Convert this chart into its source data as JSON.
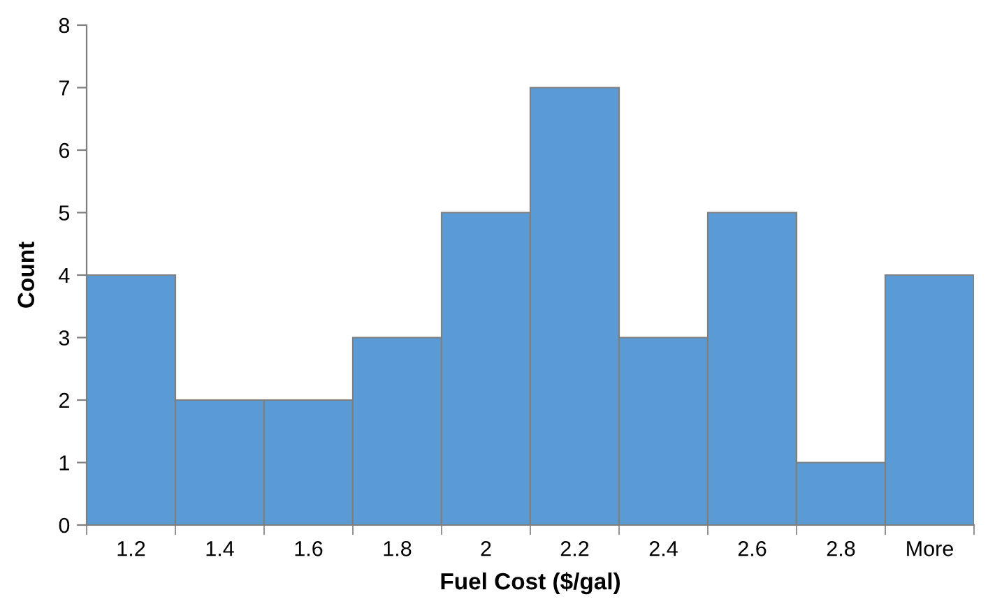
{
  "chart_data": {
    "type": "bar",
    "xlabel": "Fuel Cost ($/gal)",
    "ylabel": "Count",
    "categories": [
      "1.2",
      "1.4",
      "1.6",
      "1.8",
      "2",
      "2.2",
      "2.4",
      "2.6",
      "2.8",
      "More"
    ],
    "values": [
      4,
      2,
      2,
      3,
      5,
      7,
      3,
      5,
      1,
      4
    ],
    "color": "#5b9bd5",
    "ylim": [
      0,
      8
    ],
    "yticks": [
      0,
      1,
      2,
      3,
      4,
      5,
      6,
      7,
      8
    ],
    "grid": false,
    "legend": false
  }
}
